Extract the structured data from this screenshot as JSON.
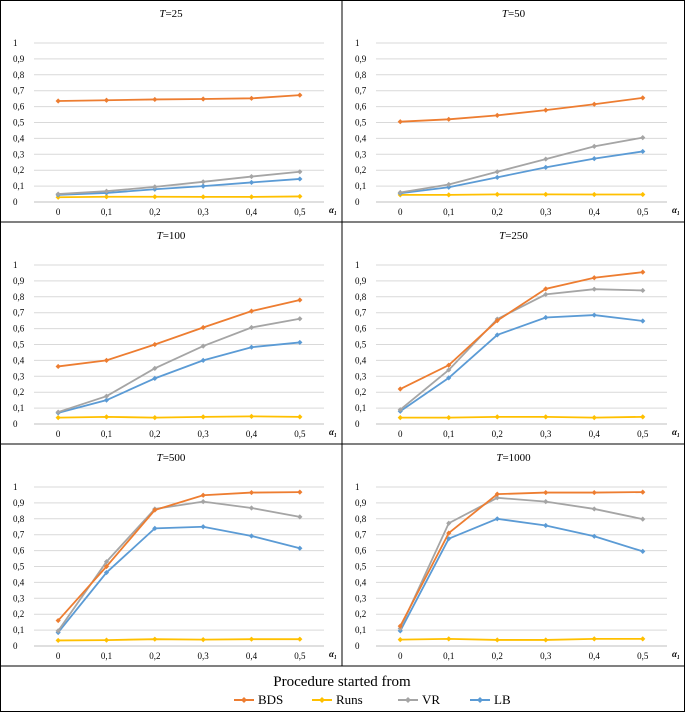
{
  "legend": {
    "title": "Procedure started from",
    "items": [
      {
        "name": "BDS",
        "color": "#ED7D31"
      },
      {
        "name": "Runs",
        "color": "#FFC000"
      },
      {
        "name": "VR",
        "color": "#A5A5A5"
      },
      {
        "name": "LB",
        "color": "#5B9BD5"
      }
    ]
  },
  "chart_data": [
    {
      "type": "line",
      "title": "T=25",
      "title_italic": "T",
      "title_rest": "=25",
      "xlabel": "α₁",
      "categories": [
        "0",
        "0,1",
        "0,2",
        "0,3",
        "0,4",
        "0,5"
      ],
      "ylim": [
        0,
        1
      ],
      "yticks": [
        "0",
        "0,1",
        "0,2",
        "0,3",
        "0,4",
        "0,5",
        "0,6",
        "0,7",
        "0,8",
        "0,9",
        "1"
      ],
      "series": [
        {
          "name": "BDS",
          "values": [
            0.635,
            0.64,
            0.645,
            0.648,
            0.652,
            0.672
          ]
        },
        {
          "name": "Runs",
          "values": [
            0.03,
            0.033,
            0.033,
            0.032,
            0.032,
            0.035
          ]
        },
        {
          "name": "VR",
          "values": [
            0.05,
            0.068,
            0.095,
            0.127,
            0.16,
            0.19
          ]
        },
        {
          "name": "LB",
          "values": [
            0.045,
            0.057,
            0.08,
            0.1,
            0.123,
            0.145
          ]
        }
      ]
    },
    {
      "type": "line",
      "title": "T=50",
      "title_italic": "T",
      "title_rest": "=50",
      "xlabel": "α₁",
      "categories": [
        "0",
        "0,1",
        "0,2",
        "0,3",
        "0,4",
        "0,5"
      ],
      "ylim": [
        0,
        1
      ],
      "yticks": [
        "0",
        "0,1",
        "0,2",
        "0,3",
        "0,4",
        "0,5",
        "0,6",
        "0,7",
        "0,8",
        "0,9",
        "1"
      ],
      "series": [
        {
          "name": "BDS",
          "values": [
            0.505,
            0.52,
            0.545,
            0.578,
            0.615,
            0.655
          ]
        },
        {
          "name": "Runs",
          "values": [
            0.045,
            0.045,
            0.048,
            0.048,
            0.047,
            0.047
          ]
        },
        {
          "name": "VR",
          "values": [
            0.06,
            0.11,
            0.19,
            0.27,
            0.35,
            0.405
          ]
        },
        {
          "name": "LB",
          "values": [
            0.055,
            0.093,
            0.155,
            0.218,
            0.273,
            0.318
          ]
        }
      ]
    },
    {
      "type": "line",
      "title": "T=100",
      "title_italic": "T",
      "title_rest": "=100",
      "xlabel": "α₁",
      "categories": [
        "0",
        "0,1",
        "0,2",
        "0,3",
        "0,4",
        "0,5"
      ],
      "ylim": [
        0,
        1
      ],
      "yticks": [
        "0",
        "0,1",
        "0,2",
        "0,3",
        "0,4",
        "0,5",
        "0,6",
        "0,7",
        "0,8",
        "0,9",
        "1"
      ],
      "series": [
        {
          "name": "BDS",
          "values": [
            0.362,
            0.4,
            0.5,
            0.607,
            0.71,
            0.78
          ]
        },
        {
          "name": "Runs",
          "values": [
            0.04,
            0.045,
            0.04,
            0.045,
            0.048,
            0.045
          ]
        },
        {
          "name": "VR",
          "values": [
            0.075,
            0.175,
            0.35,
            0.49,
            0.607,
            0.662
          ]
        },
        {
          "name": "LB",
          "values": [
            0.07,
            0.15,
            0.287,
            0.4,
            0.483,
            0.513
          ]
        }
      ]
    },
    {
      "type": "line",
      "title": "T=250",
      "title_italic": "T",
      "title_rest": "=250",
      "xlabel": "α₁",
      "categories": [
        "0",
        "0,1",
        "0,2",
        "0,3",
        "0,4",
        "0,5"
      ],
      "ylim": [
        0,
        1
      ],
      "yticks": [
        "0",
        "0,1",
        "0,2",
        "0,3",
        "0,4",
        "0,5",
        "0,6",
        "0,7",
        "0,8",
        "0,9",
        "1"
      ],
      "series": [
        {
          "name": "BDS",
          "values": [
            0.22,
            0.37,
            0.65,
            0.85,
            0.92,
            0.955
          ]
        },
        {
          "name": "Runs",
          "values": [
            0.04,
            0.04,
            0.045,
            0.045,
            0.04,
            0.045
          ]
        },
        {
          "name": "VR",
          "values": [
            0.09,
            0.34,
            0.66,
            0.815,
            0.848,
            0.84
          ]
        },
        {
          "name": "LB",
          "values": [
            0.08,
            0.29,
            0.56,
            0.67,
            0.685,
            0.648
          ]
        }
      ]
    },
    {
      "type": "line",
      "title": "T=500",
      "title_italic": "T",
      "title_rest": "=500",
      "xlabel": "α₁",
      "categories": [
        "0",
        "0,1",
        "0,2",
        "0,3",
        "0,4",
        "0,5"
      ],
      "ylim": [
        0,
        1
      ],
      "yticks": [
        "0",
        "0,1",
        "0,2",
        "0,3",
        "0,4",
        "0,5",
        "0,6",
        "0,7",
        "0,8",
        "0,9",
        "1"
      ],
      "series": [
        {
          "name": "BDS",
          "values": [
            0.16,
            0.5,
            0.855,
            0.948,
            0.965,
            0.968
          ]
        },
        {
          "name": "Runs",
          "values": [
            0.035,
            0.037,
            0.043,
            0.04,
            0.043,
            0.043
          ]
        },
        {
          "name": "VR",
          "values": [
            0.095,
            0.53,
            0.862,
            0.908,
            0.868,
            0.812
          ]
        },
        {
          "name": "LB",
          "values": [
            0.085,
            0.462,
            0.74,
            0.75,
            0.692,
            0.615
          ]
        }
      ]
    },
    {
      "type": "line",
      "title": "T=1000",
      "title_italic": "T",
      "title_rest": "=1000",
      "xlabel": "α₁",
      "categories": [
        "0",
        "0,1",
        "0,2",
        "0,3",
        "0,4",
        "0,5"
      ],
      "ylim": [
        0,
        1
      ],
      "yticks": [
        "0",
        "0,1",
        "0,2",
        "0,3",
        "0,4",
        "0,5",
        "0,6",
        "0,7",
        "0,8",
        "0,9",
        "1"
      ],
      "series": [
        {
          "name": "BDS",
          "values": [
            0.125,
            0.71,
            0.955,
            0.965,
            0.965,
            0.968
          ]
        },
        {
          "name": "Runs",
          "values": [
            0.04,
            0.045,
            0.038,
            0.038,
            0.045,
            0.045
          ]
        },
        {
          "name": "VR",
          "values": [
            0.11,
            0.772,
            0.932,
            0.908,
            0.862,
            0.798
          ]
        },
        {
          "name": "LB",
          "values": [
            0.095,
            0.675,
            0.8,
            0.758,
            0.69,
            0.595
          ]
        }
      ]
    }
  ]
}
